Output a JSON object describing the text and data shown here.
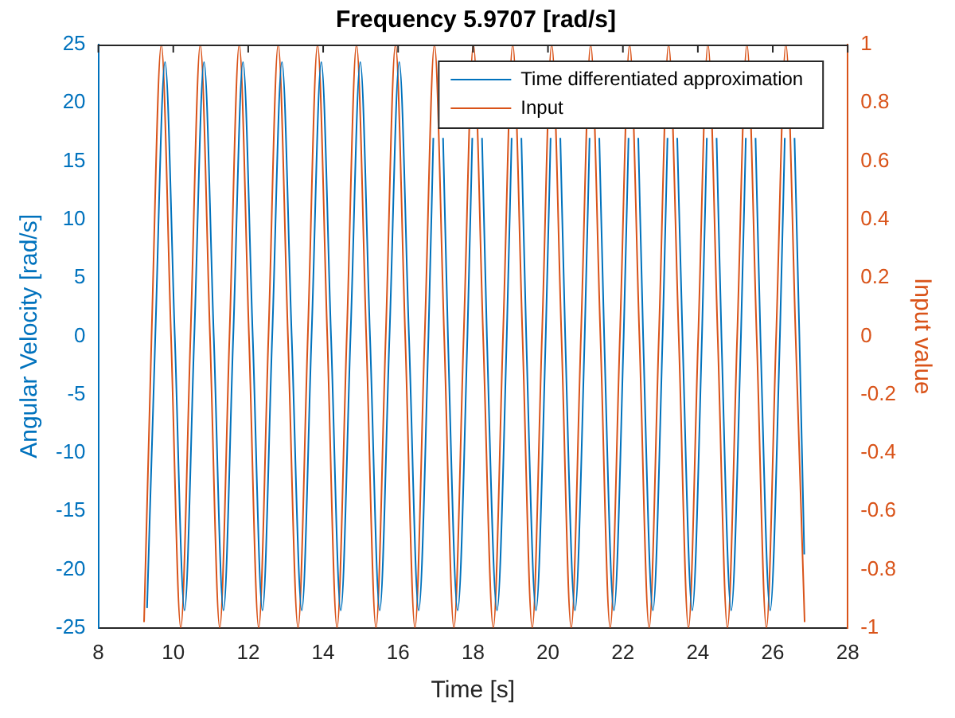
{
  "chart_data": {
    "type": "line",
    "title": "Frequency 5.9707 [rad/s]",
    "xlabel": "Time [s]",
    "ylabel": "Angular Velocity [rad/s]",
    "y2label": "Input value",
    "xlim": [
      8,
      28
    ],
    "xticks": [
      8,
      10,
      12,
      14,
      16,
      18,
      20,
      22,
      24,
      26,
      28
    ],
    "ylim": [
      -25,
      25
    ],
    "yticks": [
      -25,
      -20,
      -15,
      -10,
      -5,
      0,
      5,
      10,
      15,
      20,
      25
    ],
    "y2lim": [
      -1,
      1
    ],
    "y2ticks": [
      -1,
      -0.8,
      -0.6,
      -0.4,
      -0.2,
      0,
      0.2,
      0.4,
      0.6,
      0.8,
      1
    ],
    "grid": false,
    "legend": "top right",
    "marker": "none",
    "line_style": "solid",
    "series": [
      {
        "name": "Time differentiated approximation",
        "color": "#0072bd",
        "x": [
          9.3,
          9.52,
          9.78,
          10.04,
          10.3,
          10.56,
          10.82,
          11.08,
          11.34,
          11.6,
          11.86,
          12.12,
          12.38,
          12.64,
          12.9,
          13.16,
          13.43,
          13.69,
          13.95,
          14.21,
          14.47,
          14.73,
          14.99,
          15.25,
          15.51,
          15.77,
          16.03,
          16.29,
          16.55,
          16.81,
          16.94,
          17.07,
          17.2,
          17.33,
          17.59,
          17.85,
          17.98,
          18.11,
          18.24,
          18.37,
          18.64,
          18.9,
          19.03,
          19.16,
          19.29,
          19.42,
          19.68,
          19.94,
          20.07,
          20.2,
          20.33,
          20.46,
          20.72,
          20.98,
          21.11,
          21.24,
          21.37,
          21.5,
          21.76,
          22.02,
          22.15,
          22.28,
          22.41,
          22.54,
          22.8,
          23.06,
          23.19,
          23.32,
          23.45,
          23.59,
          23.85,
          24.11,
          24.24,
          24.37,
          24.5,
          24.63,
          24.89,
          25.15,
          25.28,
          25.41,
          25.54,
          25.67,
          25.93,
          26.19,
          26.32,
          26.45,
          26.58,
          26.71,
          26.84
        ],
        "values": [
          -23.3,
          0,
          23.5,
          0,
          -23.5,
          0,
          23.5,
          0,
          -23.5,
          0,
          23.5,
          0,
          -23.5,
          0,
          23.5,
          0,
          -23.5,
          0,
          23.5,
          0,
          -23.5,
          0,
          23.5,
          0,
          -23.5,
          0,
          23.5,
          0,
          -23.5,
          0,
          17,
          null,
          17,
          0,
          -23.5,
          0,
          17,
          null,
          17,
          0,
          -23.5,
          0,
          17,
          null,
          17,
          0,
          -23.5,
          0,
          17,
          null,
          17,
          0,
          -23.5,
          0,
          17,
          null,
          17,
          0,
          -23.5,
          0,
          17,
          null,
          17,
          0,
          -23.5,
          0,
          17,
          null,
          17,
          0,
          -23.5,
          0,
          17,
          null,
          17,
          0,
          -23.5,
          0,
          17,
          null,
          17,
          0,
          -23.5,
          0,
          17,
          null,
          17,
          0,
          -18.7
        ]
      },
      {
        "name": "Input",
        "color": "#d95319",
        "axis": "y2",
        "x": [
          9.22,
          9.42,
          9.68,
          9.94,
          10.2,
          10.46,
          10.72,
          10.98,
          11.24,
          11.5,
          11.76,
          12.02,
          12.28,
          12.54,
          12.8,
          13.06,
          13.33,
          13.59,
          13.85,
          14.11,
          14.37,
          14.63,
          14.89,
          15.15,
          15.41,
          15.67,
          15.93,
          16.19,
          16.45,
          16.71,
          16.97,
          17.23,
          17.49,
          17.75,
          18.01,
          18.27,
          18.54,
          18.8,
          19.06,
          19.32,
          19.58,
          19.84,
          20.1,
          20.36,
          20.62,
          20.88,
          21.14,
          21.4,
          21.66,
          21.92,
          22.18,
          22.44,
          22.7,
          22.96,
          23.22,
          23.49,
          23.75,
          24.01,
          24.27,
          24.53,
          24.79,
          25.05,
          25.31,
          25.57,
          25.83,
          26.09,
          26.35,
          26.61,
          26.85
        ],
        "values": [
          -0.98,
          0,
          1,
          0,
          -1,
          0,
          1,
          0,
          -1,
          0,
          1,
          0,
          -1,
          0,
          1,
          0,
          -1,
          0,
          1,
          0,
          -1,
          0,
          1,
          0,
          -1,
          0,
          1,
          0,
          -1,
          0,
          1,
          0,
          -1,
          0,
          1,
          0,
          -1,
          0,
          1,
          0,
          -1,
          0,
          1,
          0,
          -1,
          0,
          1,
          0,
          -1,
          0,
          1,
          0,
          -1,
          0,
          1,
          0,
          -1,
          0,
          1,
          0,
          -1,
          0,
          1,
          0,
          -1,
          0,
          1,
          0,
          -0.98
        ]
      }
    ]
  }
}
